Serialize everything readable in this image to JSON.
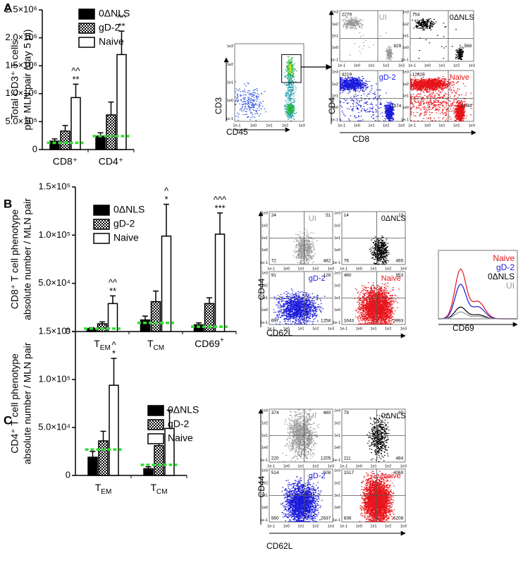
{
  "chart_data": [
    {
      "type": "bar",
      "letter": "A",
      "ylabel": [
        "Total CD3⁺ T cells",
        "per MLN pair (day 5 pi)"
      ],
      "categories": [
        "CD8⁺",
        "CD4⁺"
      ],
      "series": [
        {
          "name": "0ΔNLS",
          "color": "#000000",
          "pattern": "solid",
          "values": [
            150000,
            240000
          ],
          "errors": [
            40000,
            60000
          ]
        },
        {
          "name": "gD-2",
          "color": "#000000",
          "pattern": "checker",
          "values": [
            330000,
            620000
          ],
          "errors": [
            100000,
            230000
          ]
        },
        {
          "name": "Naive",
          "color": "#ffffff",
          "pattern": "solid",
          "values": [
            930000,
            1700000
          ],
          "errors": [
            240000,
            420000
          ]
        }
      ],
      "baseline": {
        "color": "#33dd33",
        "values": [
          120000,
          240000
        ]
      },
      "annotations": [
        {
          "category": 0,
          "series": 2,
          "lines": [
            "^^",
            "**"
          ]
        },
        {
          "category": 1,
          "series": 2,
          "lines": [
            "^^",
            "**"
          ]
        }
      ],
      "ylim": [
        0,
        2500000
      ],
      "yticks": [
        0,
        {
          "value": 500000,
          "label": "5.0×10⁵"
        },
        {
          "value": 1000000,
          "label": "1.0×10⁶"
        },
        {
          "value": 1500000,
          "label": "1.5×10⁶"
        },
        {
          "value": 2000000,
          "label": "2.0×10⁶"
        },
        {
          "value": 2500000,
          "label": "2.5×10⁶"
        }
      ]
    },
    {
      "type": "bar",
      "letter": "B",
      "ylabel": [
        "CD8⁺ T cell phenotype",
        "absolute number / MLN pair"
      ],
      "categories": [
        {
          "text": "T",
          "sub": "EM"
        },
        {
          "text": "T",
          "sub": "CM"
        },
        {
          "text": "CD69",
          "sup": "+"
        }
      ],
      "series": [
        {
          "name": "0ΔNLS",
          "color": "#000000",
          "pattern": "solid",
          "values": [
            3000,
            12000,
            7000
          ],
          "errors": [
            1000,
            4000,
            2000
          ]
        },
        {
          "name": "gD-2",
          "color": "#000000",
          "pattern": "checker",
          "values": [
            8000,
            31000,
            29000
          ],
          "errors": [
            2000,
            11000,
            6000
          ]
        },
        {
          "name": "Naive",
          "color": "#ffffff",
          "pattern": "solid",
          "values": [
            29000,
            99000,
            101000
          ],
          "errors": [
            8000,
            33000,
            22000
          ]
        }
      ],
      "baseline": {
        "color": "#33dd33",
        "values": [
          3000,
          9000,
          5000
        ]
      },
      "annotations": [
        {
          "category": 0,
          "series": 2,
          "lines": [
            "^^",
            "**"
          ]
        },
        {
          "category": 1,
          "series": 2,
          "lines": [
            "^",
            "*"
          ]
        },
        {
          "category": 2,
          "series": 2,
          "lines": [
            "^^^",
            "***"
          ]
        }
      ],
      "ylim": [
        0,
        150000
      ],
      "yticks": [
        0,
        {
          "value": 50000,
          "label": "5.0×10⁴"
        },
        {
          "value": 100000,
          "label": "1.0×10⁵"
        },
        {
          "value": 150000,
          "label": "1.5×10⁵"
        }
      ]
    },
    {
      "type": "bar",
      "letter": "C",
      "ylabel": [
        "CD4⁺ T cell phenotype",
        "absolute number / MLN pair"
      ],
      "categories": [
        {
          "text": "T",
          "sub": "EM"
        },
        {
          "text": "T",
          "sub": "CM"
        }
      ],
      "series": [
        {
          "name": "0ΔNLS",
          "color": "#000000",
          "pattern": "solid",
          "values": [
            19000,
            7000
          ],
          "errors": [
            6000,
            2000
          ]
        },
        {
          "name": "gD-2",
          "color": "#000000",
          "pattern": "checker",
          "values": [
            36000,
            31000
          ],
          "errors": [
            10000,
            11000
          ]
        },
        {
          "name": "Naive",
          "color": "#ffffff",
          "pattern": "solid",
          "values": [
            94000,
            49000
          ],
          "errors": [
            28000,
            19000
          ]
        }
      ],
      "baseline": {
        "color": "#33dd33",
        "values": [
          27000,
          11000
        ]
      },
      "annotations": [
        {
          "category": 0,
          "series": 2,
          "lines": [
            "^",
            "*"
          ]
        }
      ],
      "ylim": [
        0,
        150000
      ],
      "yticks": [
        0,
        {
          "value": 50000,
          "label": "5.0×10⁴"
        },
        {
          "value": 100000,
          "label": "1.0×10⁵"
        },
        {
          "value": 150000,
          "label": "1.5×10⁵"
        }
      ]
    }
  ],
  "flow": {
    "ticks": [
      "1e-1",
      "1e0",
      "1e1",
      "1e2",
      "1e3"
    ],
    "A": {
      "gate": {
        "x_label": "CD45",
        "y_label": "CD3"
      },
      "x_label": "CD8",
      "y_label": "CD4",
      "plots": [
        {
          "name": "UI",
          "color": "#999999",
          "counts": [
            2279,
            629
          ]
        },
        {
          "name": "0ΔNLS",
          "color": "#000000",
          "counts": [
            754,
            568
          ]
        },
        {
          "name": "gD-2",
          "color": "#1a1adb",
          "counts": [
            4219,
            2174
          ]
        },
        {
          "name": "Naive",
          "color": "#e8141b",
          "counts": [
            12628,
            6049
          ]
        }
      ]
    },
    "B": {
      "x_label": "CD62L",
      "y_label": "CD44",
      "plots": [
        {
          "name": "UI",
          "color": "#999999",
          "counts": [
            24,
            51,
            72,
            482
          ]
        },
        {
          "name": "0ΔNLS",
          "color": "#000000",
          "counts": [
            14,
            13,
            76,
            465
          ]
        },
        {
          "name": "gD-2",
          "color": "#1a1adb",
          "counts": [
            91,
            128,
            697,
            1258
          ]
        },
        {
          "name": "Naive",
          "color": "#e8141b",
          "counts": [
            460,
            953,
            1643,
            2993
          ]
        }
      ],
      "histogram": {
        "x_label": "CD69",
        "legend": [
          {
            "name": "Naive",
            "color": "#e8141b"
          },
          {
            "name": "gD-2",
            "color": "#1a1adb"
          },
          {
            "name": "0ΔNLS",
            "color": "#000000"
          },
          {
            "name": "UI",
            "color": "#999999"
          }
        ]
      }
    },
    "C": {
      "x_label": "CD62L",
      "y_label": "CD44",
      "plots": [
        {
          "name": "UI",
          "color": "#999999",
          "counts": [
            374,
            480,
            220,
            1205
          ]
        },
        {
          "name": "0ΔNLS",
          "color": "#000000",
          "counts": [
            79,
            80,
            111,
            484
          ]
        },
        {
          "name": "gD-2",
          "color": "#1a1adb",
          "counts": [
            514,
            508,
            560,
            2637
          ]
        },
        {
          "name": "Naive",
          "color": "#e8141b",
          "counts": [
            1517,
            4069,
            836,
            6208
          ]
        }
      ]
    }
  }
}
